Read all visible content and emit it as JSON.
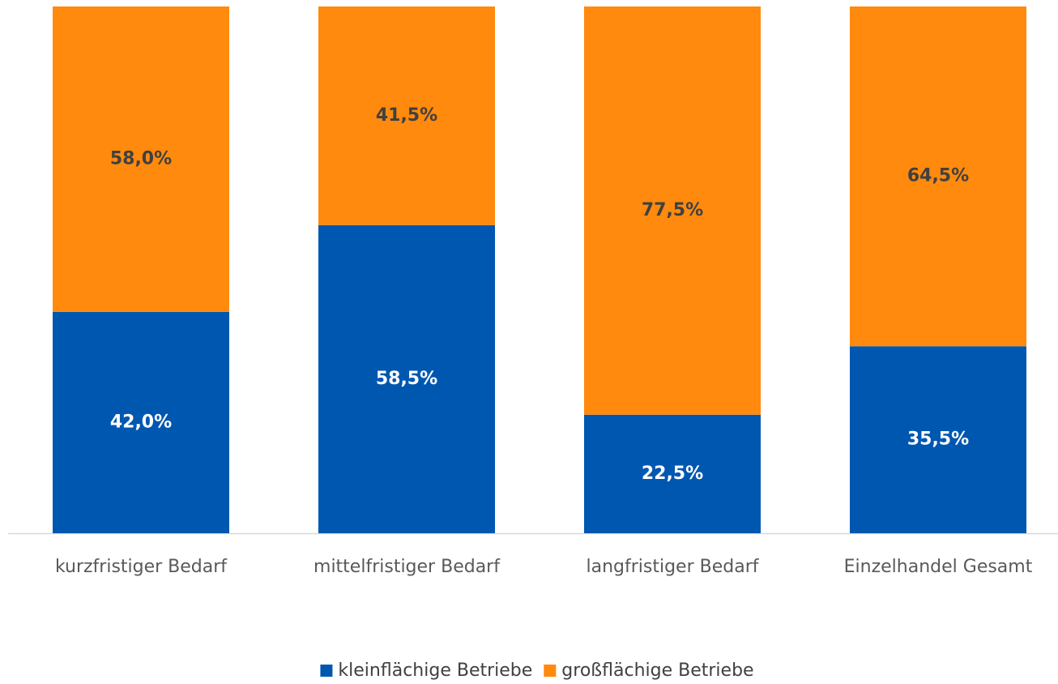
{
  "chart_data": {
    "type": "stacked_bar",
    "categories": [
      "kurzfristiger Bedarf",
      "mittelfristiger Bedarf",
      "langfristiger Bedarf",
      "Einzelhandel Gesamt"
    ],
    "series": [
      {
        "name": "kleinflächige Betriebe",
        "color": "#0057b0",
        "values": [
          42,
          58.5,
          22.5,
          35.5
        ],
        "value_labels": [
          "42,0%",
          "58,5%",
          "22,5%",
          "35,5%"
        ]
      },
      {
        "name": "großflächige Betriebe",
        "color": "#ff8a0d",
        "values": [
          58,
          41.5,
          77.5,
          64.5
        ],
        "value_labels": [
          "58,0%",
          "41,5%",
          "77,5%",
          "64,5%"
        ]
      }
    ],
    "ylim": [
      0,
      100
    ],
    "legend": "bottom"
  }
}
